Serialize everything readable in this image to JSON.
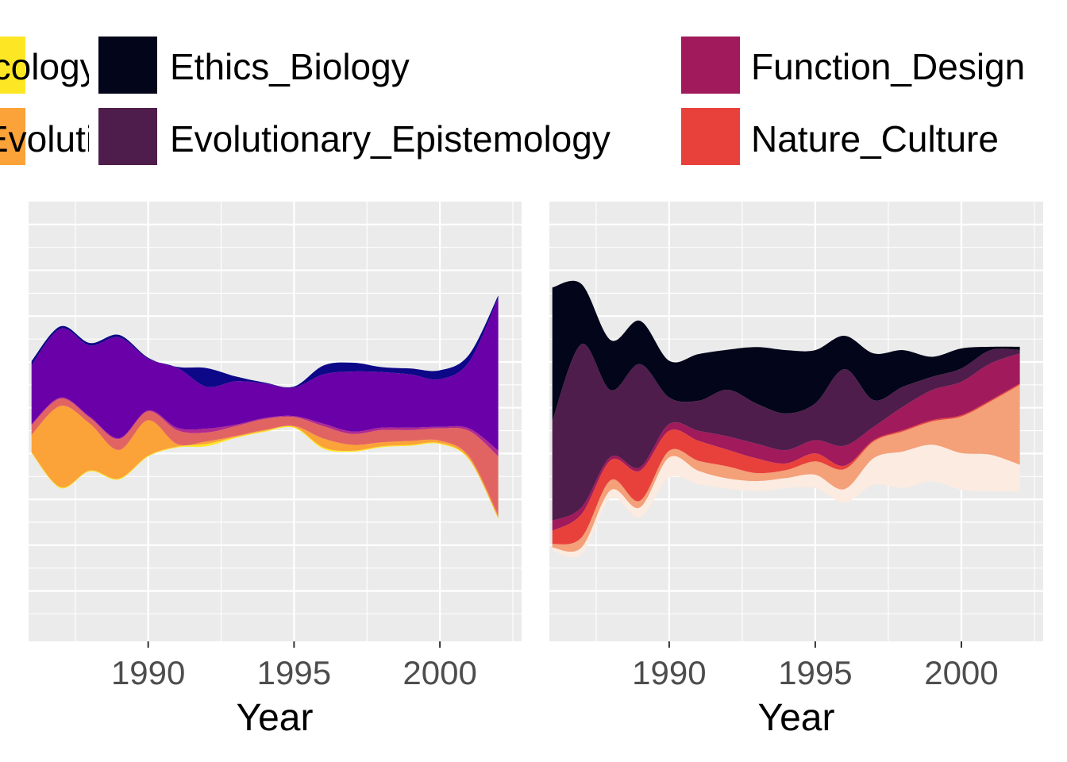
{
  "chart_data": [
    {
      "type": "area",
      "subtype": "streamgraph",
      "xlabel": "Year",
      "x_ticks": [
        1990,
        1995,
        2000
      ],
      "xlim": [
        1985.9,
        2002.8
      ],
      "y_ticks_labeled": false,
      "grid": true,
      "x": [
        1986,
        1987,
        1988,
        1989,
        1990,
        1991,
        1992,
        1993,
        1994,
        1995,
        1996,
        1997,
        1998,
        1999,
        2000,
        2001,
        2002
      ],
      "series": [
        {
          "color": "#FDE725",
          "values": [
            0.02,
            0.02,
            0.02,
            0.02,
            0.02,
            0.02,
            0.05,
            0.02,
            0.02,
            0.02,
            0.03,
            0.02,
            0.02,
            0.02,
            0.02,
            0.02,
            0.02
          ]
        },
        {
          "color": "#FBA238",
          "values": [
            0.35,
            1.65,
            0.95,
            0.58,
            0.72,
            0.05,
            0.05,
            0.02,
            0.02,
            0.02,
            0.18,
            0.12,
            0.08,
            0.08,
            0.05,
            0.05,
            0.05
          ]
        },
        {
          "color": "#E16462",
          "values": [
            0.2,
            0.15,
            0.12,
            0.22,
            0.18,
            0.28,
            0.18,
            0.2,
            0.22,
            0.18,
            0.25,
            0.22,
            0.25,
            0.22,
            0.25,
            0.52,
            1.2
          ]
        },
        {
          "color": "#B12A90",
          "values": [
            0.02,
            0.02,
            0.02,
            0.02,
            0.02,
            0.05,
            0.08,
            0.03,
            0.02,
            0.02,
            0.05,
            0.05,
            0.05,
            0.05,
            0.03,
            0.05,
            0.12
          ]
        },
        {
          "color": "#6A00A8",
          "values": [
            1.2,
            1.4,
            1.45,
            2.05,
            1.05,
            1.22,
            0.85,
            0.88,
            0.7,
            0.58,
            1.0,
            1.22,
            1.13,
            1.08,
            0.97,
            1.35,
            3.1
          ]
        },
        {
          "color": "#0D0887",
          "values": [
            0.08,
            0.05,
            0.05,
            0.05,
            0.02,
            0.02,
            0.38,
            0.1,
            0.02,
            0.02,
            0.18,
            0.18,
            0.1,
            0.12,
            0.18,
            0.15,
            0.05
          ]
        }
      ]
    },
    {
      "type": "area",
      "subtype": "streamgraph",
      "xlabel": "Year",
      "x_ticks": [
        1990,
        1995,
        2000
      ],
      "xlim": [
        1985.9,
        2002.8
      ],
      "y_ticks_labeled": false,
      "grid": true,
      "x": [
        1986,
        1987,
        1988,
        1989,
        1990,
        1991,
        1992,
        1993,
        1994,
        1995,
        1996,
        1997,
        1998,
        1999,
        2000,
        2001,
        2002
      ],
      "series": [
        {
          "color": "#FCEBE0",
          "values": [
            0.05,
            0.1,
            0.12,
            0.15,
            0.3,
            0.2,
            0.15,
            0.15,
            0.15,
            0.2,
            0.2,
            0.4,
            0.55,
            0.55,
            0.55,
            0.55,
            0.4
          ]
        },
        {
          "color": "#F4A078",
          "values": [
            0.05,
            0.15,
            0.15,
            0.1,
            0.1,
            0.15,
            0.18,
            0.12,
            0.12,
            0.2,
            0.3,
            0.25,
            0.3,
            0.35,
            0.55,
            0.8,
            1.2
          ]
        },
        {
          "color": "#E8413C",
          "values": [
            0.2,
            0.35,
            0.3,
            0.45,
            0.3,
            0.3,
            0.25,
            0.22,
            0.1,
            0.12,
            0.05,
            0.02,
            0.02,
            0.02,
            0.02,
            0.02,
            0.02
          ]
        },
        {
          "color": "#A11A5B",
          "values": [
            0.15,
            0.1,
            0.05,
            0.05,
            0.1,
            0.15,
            0.2,
            0.22,
            0.2,
            0.2,
            0.3,
            0.2,
            0.35,
            0.45,
            0.5,
            0.55,
            0.45
          ]
        },
        {
          "color": "#4F1D4B",
          "values": [
            1.5,
            2.45,
            1.0,
            1.55,
            0.4,
            0.45,
            0.7,
            0.6,
            0.55,
            0.55,
            1.15,
            0.4,
            0.3,
            0.2,
            0.2,
            0.2,
            0.05
          ]
        },
        {
          "color": "#03051A",
          "values": [
            2.0,
            0.9,
            0.75,
            0.65,
            0.55,
            0.7,
            0.6,
            0.85,
            0.95,
            0.8,
            0.5,
            0.7,
            0.55,
            0.3,
            0.3,
            0.05,
            0.05
          ]
        }
      ]
    }
  ],
  "legend": {
    "items": [
      {
        "label": "Ecology",
        "color": "#FDE725"
      },
      {
        "label": "Evolution",
        "color": "#FBA238"
      },
      {
        "label": "Ethics_Biology",
        "color": "#03051A"
      },
      {
        "label": "Evolutionary_Epistemology",
        "color": "#4F1D4B"
      },
      {
        "label": "Function_Design",
        "color": "#A11A5B"
      },
      {
        "label": "Nature_Culture",
        "color": "#E8413C"
      }
    ]
  }
}
